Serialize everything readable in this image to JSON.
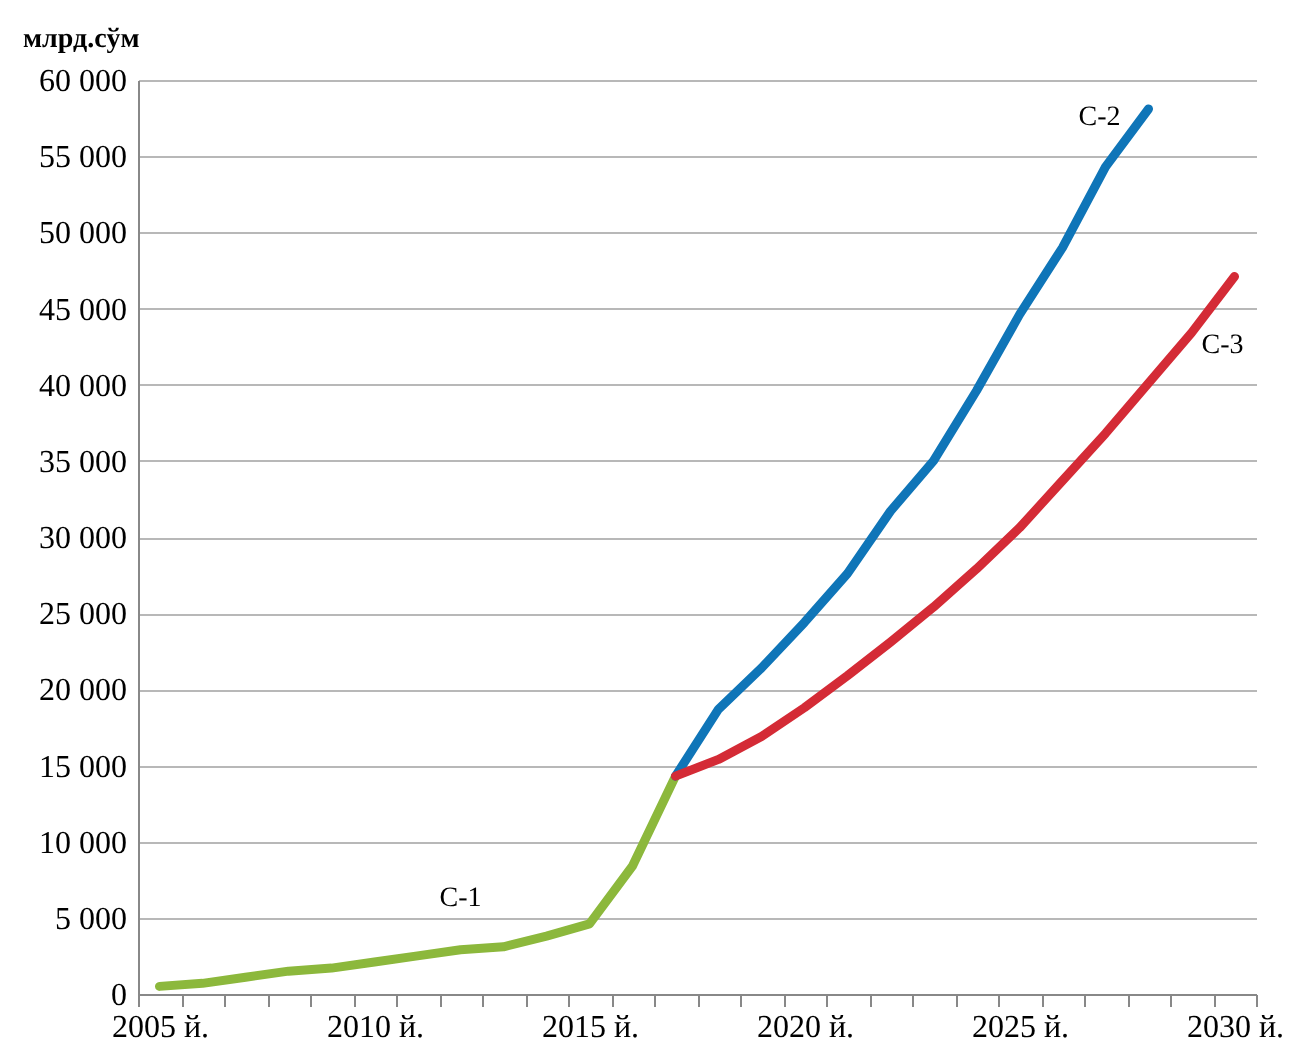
{
  "chart_data": {
    "type": "line",
    "ylabel": "млрд.сўм",
    "categories": [
      "2005 й.",
      null,
      null,
      null,
      null,
      "2010 й.",
      null,
      null,
      null,
      null,
      "2015 й.",
      null,
      null,
      null,
      null,
      "2020 й.",
      null,
      null,
      null,
      null,
      "2025 й.",
      null,
      null,
      null,
      null,
      "2030 й."
    ],
    "series": [
      {
        "name": "С-1",
        "color": "#8cb83c",
        "values": [
          500,
          700,
          1100,
          1500,
          1700,
          2100,
          2500,
          2900,
          3100,
          3800,
          4600,
          8400,
          14300,
          null,
          null,
          null,
          null,
          null,
          null,
          null,
          null,
          null,
          null,
          null,
          null,
          null
        ]
      },
      {
        "name": "С-2",
        "color": "#0f75b8",
        "values": [
          null,
          null,
          null,
          null,
          null,
          null,
          null,
          null,
          null,
          null,
          null,
          null,
          14300,
          18700,
          21400,
          24400,
          27600,
          31700,
          35000,
          39600,
          44600,
          49000,
          54300,
          58100,
          null,
          null
        ]
      },
      {
        "name": "С-3",
        "color": "#d42b36",
        "values": [
          null,
          null,
          null,
          null,
          null,
          null,
          null,
          null,
          null,
          null,
          null,
          null,
          14300,
          15400,
          16900,
          18800,
          20900,
          23100,
          25400,
          27900,
          30600,
          33700,
          36800,
          40100,
          43400,
          47100
        ]
      }
    ],
    "ylim": [
      0,
      60000
    ],
    "yticks": [
      0,
      {
        "value": 5000,
        "label": "5 000"
      },
      {
        "value": 10000,
        "label": "10 000"
      },
      {
        "value": 15000,
        "label": "15 000"
      },
      {
        "value": 20000,
        "label": "20 000"
      },
      {
        "value": 25000,
        "label": "25 000"
      },
      {
        "value": 30000,
        "label": "30 000"
      },
      {
        "value": 35000,
        "label": "35 000"
      },
      {
        "value": 40000,
        "label": "40 000"
      },
      {
        "value": 45000,
        "label": "45 000"
      },
      {
        "value": 50000,
        "label": "50 000"
      },
      {
        "value": 55000,
        "label": "55 000"
      },
      {
        "value": 60000,
        "label": "60 000"
      }
    ],
    "grid": "y",
    "legend": false,
    "line_style": "solid",
    "marker": "none"
  }
}
